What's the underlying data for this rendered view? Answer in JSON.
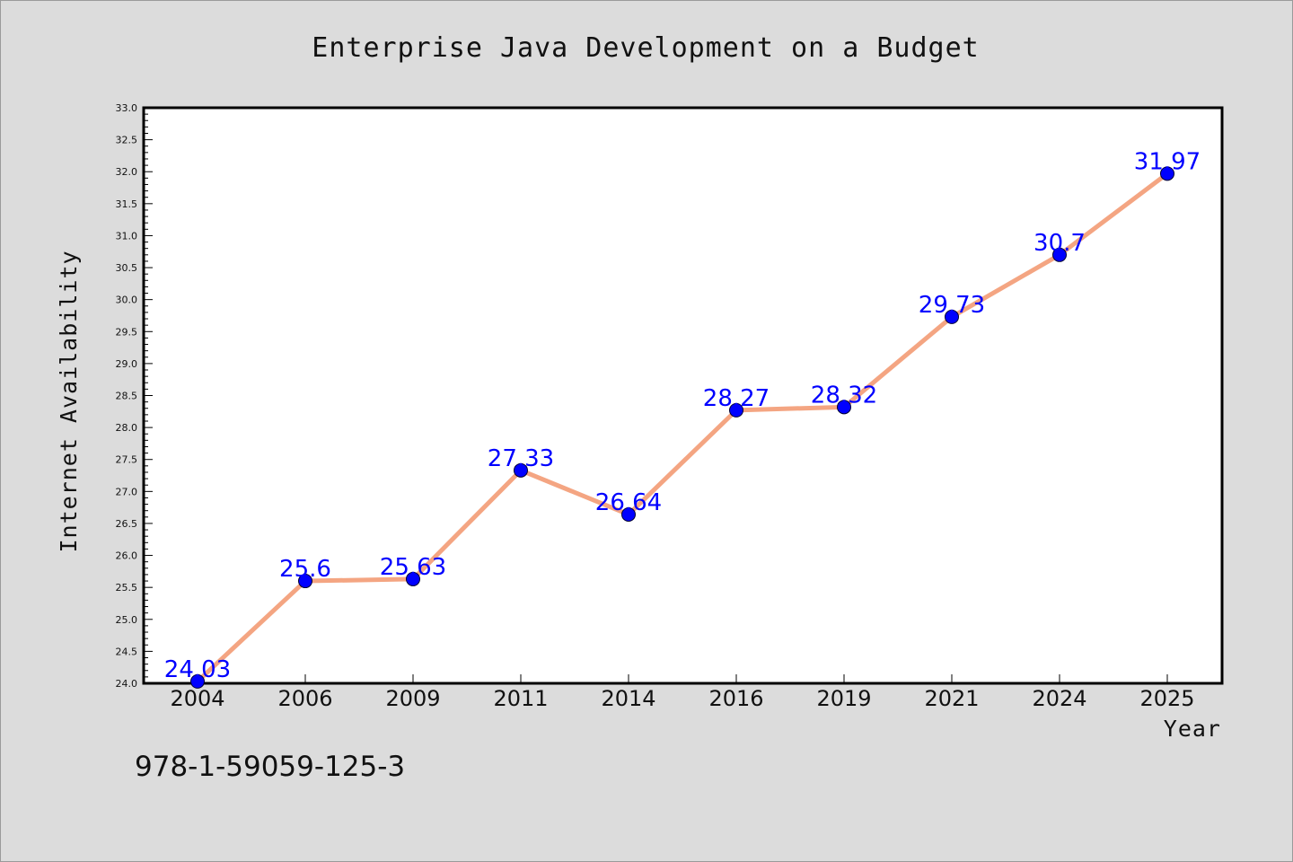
{
  "chart_data": {
    "type": "line",
    "title": "Enterprise Java Development on a Budget",
    "xlabel": "Year",
    "ylabel": "Internet Availability",
    "categories": [
      "2004",
      "2006",
      "2009",
      "2011",
      "2014",
      "2016",
      "2019",
      "2021",
      "2024",
      "2025"
    ],
    "series": [
      {
        "values": [
          24.03,
          25.6,
          25.63,
          27.33,
          26.64,
          28.27,
          28.32,
          29.73,
          30.7,
          31.97
        ]
      }
    ],
    "data_labels": [
      "24.03",
      "25.6",
      "25.63",
      "27.33",
      "26.64",
      "28.27",
      "28.32",
      "29.73",
      "30.7",
      "31.97"
    ],
    "ylim": [
      24.0,
      33.0
    ],
    "yticks": [
      "24.0",
      "24.5",
      "25.0",
      "25.5",
      "26.0",
      "26.5",
      "27.0",
      "27.5",
      "28.0",
      "28.5",
      "29.0",
      "29.5",
      "30.0",
      "30.5",
      "31.0",
      "31.5",
      "32.0",
      "32.5",
      "33.0"
    ],
    "grid": false,
    "legend": "none",
    "colors": {
      "line": "#f4a582",
      "marker": "#0000ff",
      "label": "#0000ff",
      "background": "#dcdcdc",
      "plot_background": "#ffffff"
    }
  },
  "footer": {
    "isbn": "978-1-59059-125-3"
  }
}
